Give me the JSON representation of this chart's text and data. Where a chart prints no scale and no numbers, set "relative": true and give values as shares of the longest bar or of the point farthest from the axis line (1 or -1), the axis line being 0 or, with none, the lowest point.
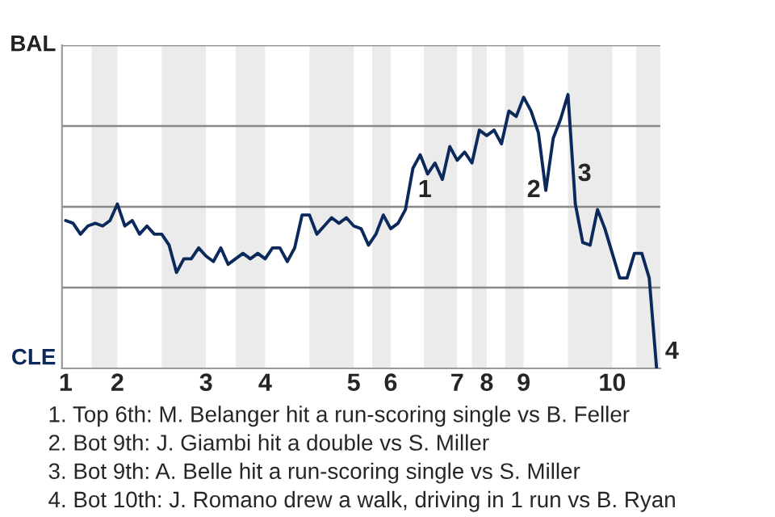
{
  "chart_data": {
    "type": "line",
    "relative": true,
    "grid": true,
    "categories": [
      "1",
      null,
      null,
      null,
      null,
      null,
      null,
      "2",
      null,
      null,
      null,
      null,
      null,
      null,
      null,
      null,
      null,
      null,
      null,
      "3",
      null,
      null,
      null,
      null,
      null,
      null,
      null,
      "4",
      null,
      null,
      null,
      null,
      null,
      null,
      null,
      null,
      null,
      null,
      null,
      "5",
      null,
      null,
      null,
      null,
      "6",
      null,
      null,
      null,
      null,
      null,
      null,
      null,
      null,
      "7",
      null,
      null,
      null,
      "8",
      null,
      null,
      null,
      null,
      "9",
      null,
      null,
      null,
      null,
      null,
      null,
      null,
      null,
      null,
      null,
      null,
      "10",
      null,
      null,
      null,
      null,
      null,
      null
    ],
    "series": [
      {
        "color": "#0b2a5b",
        "values": [
          0.54,
          0.53,
          0.49,
          0.52,
          0.53,
          0.52,
          0.54,
          0.6,
          0.52,
          0.54,
          0.49,
          0.52,
          0.49,
          0.49,
          0.45,
          0.35,
          0.4,
          0.4,
          0.44,
          0.41,
          0.39,
          0.44,
          0.38,
          0.4,
          0.42,
          0.4,
          0.42,
          0.4,
          0.44,
          0.44,
          0.39,
          0.44,
          0.56,
          0.56,
          0.49,
          0.52,
          0.55,
          0.53,
          0.55,
          0.52,
          0.51,
          0.45,
          0.49,
          0.56,
          0.51,
          0.53,
          0.58,
          0.73,
          0.78,
          0.71,
          0.75,
          0.69,
          0.81,
          0.76,
          0.79,
          0.75,
          0.87,
          0.85,
          0.87,
          0.82,
          0.94,
          0.92,
          0.99,
          0.94,
          0.86,
          0.65,
          0.84,
          0.91,
          1,
          0.6,
          0.46,
          0.45,
          0.58,
          0.51,
          0.42,
          0.33,
          0.33,
          0.42,
          0.42,
          0.33,
          0
        ]
      }
    ],
    "annotations": [
      "BAL",
      "CLE",
      "1",
      "2",
      "3",
      "4",
      "1. Top 6th: M. Belanger hit a run-scoring single vs B. Feller",
      "2. Bot 9th: J. Giambi hit a double vs S. Miller",
      "3. Bot 9th: A. Belle hit a run-scoring single vs S. Miller",
      "4. Bot 10th: J. Romano drew a walk, driving in 1 run vs B. Ryan"
    ]
  }
}
